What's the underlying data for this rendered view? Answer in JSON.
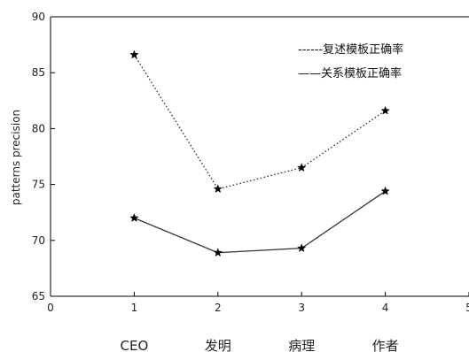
{
  "chart_data": {
    "type": "line",
    "x": [
      1,
      2,
      3,
      4
    ],
    "categories": [
      "CEO",
      "发明",
      "病理",
      "作者"
    ],
    "xlim": [
      0,
      5
    ],
    "xticks": [
      0,
      1,
      2,
      3,
      4,
      5
    ],
    "ylim": [
      65,
      90
    ],
    "yticks": [
      65,
      70,
      75,
      80,
      85,
      90
    ],
    "xlabel": "",
    "ylabel": "patterns precision",
    "grid": false,
    "legend_position": "top-right",
    "series": [
      {
        "name": "复述模板正确率",
        "style": "dotted",
        "marker": "star",
        "values": [
          86.6,
          74.6,
          76.5,
          81.6
        ]
      },
      {
        "name": "关系模板正确率",
        "style": "solid",
        "marker": "star",
        "values": [
          72.0,
          68.9,
          69.3,
          74.4
        ]
      }
    ],
    "legend": [
      {
        "prefix": "------",
        "label": "复述模板正确率"
      },
      {
        "prefix": "——",
        "label": "关系模板正确率"
      }
    ]
  }
}
